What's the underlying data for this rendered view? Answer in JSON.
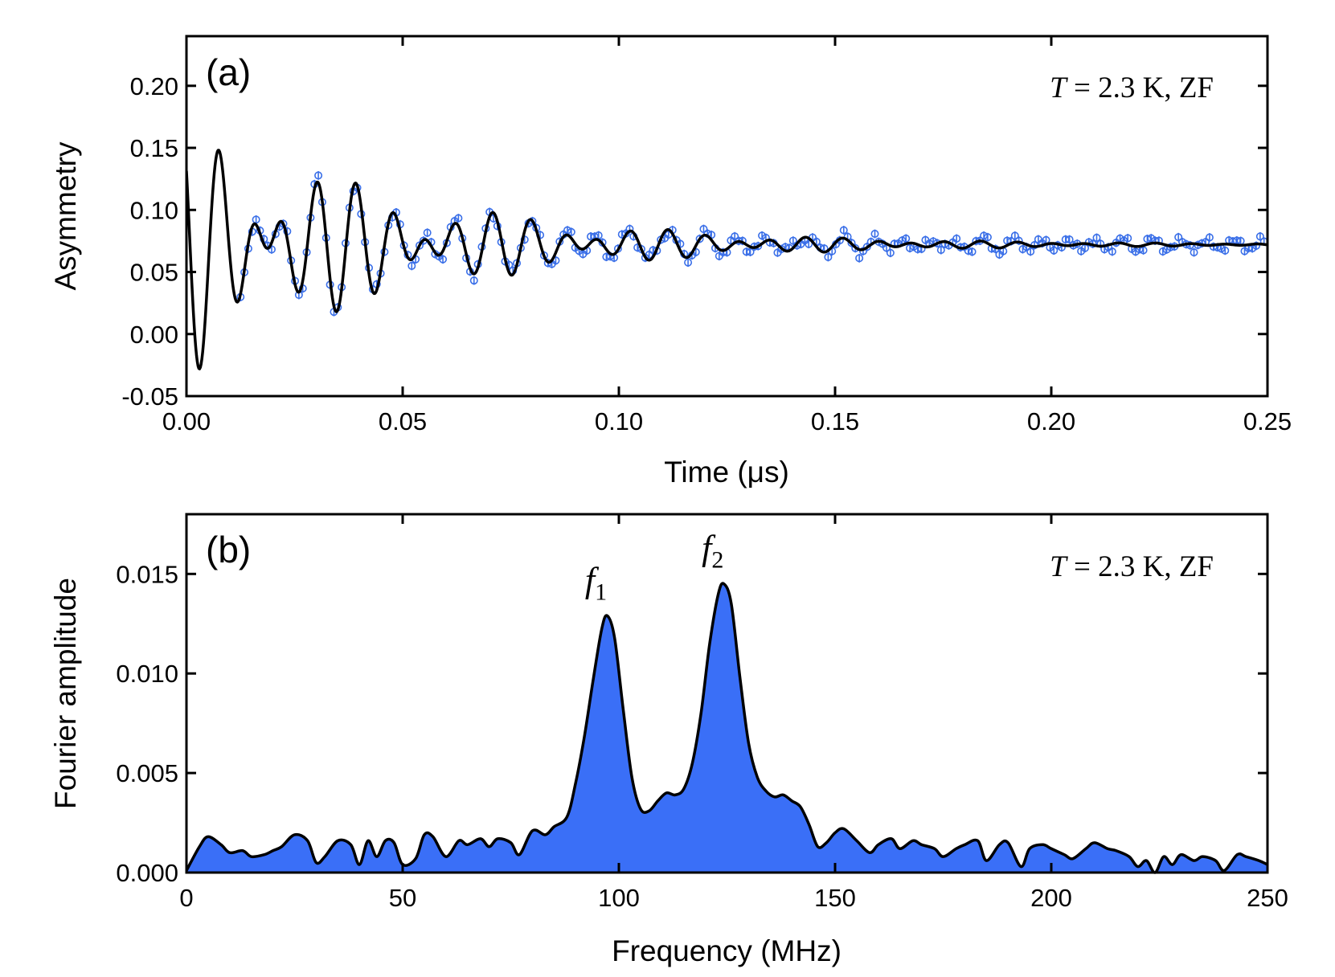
{
  "chart_data": [
    {
      "type": "scatter",
      "panel_label": "(a)",
      "annotation_italic": "T",
      "annotation_rest": " = 2.3 K, ZF",
      "xlabel": "Time (μs)",
      "ylabel": "Asymmetry",
      "xlim": [
        0,
        0.25
      ],
      "ylim": [
        -0.05,
        0.24
      ],
      "xticks": [
        "0.00",
        "0.05",
        "0.10",
        "0.15",
        "0.20",
        "0.25"
      ],
      "xtick_values": [
        0,
        0.05,
        0.1,
        0.15,
        0.2,
        0.25
      ],
      "yticks": [
        "-0.05",
        "0.00",
        "0.05",
        "0.10",
        "0.15",
        "0.20"
      ],
      "ytick_values": [
        -0.05,
        0.0,
        0.05,
        0.1,
        0.15,
        0.2
      ],
      "grid": false,
      "series": [
        {
          "kind": "data_points_with_error_bars",
          "color": "#3a6fe8",
          "baseline": 0.072,
          "components": [
            {
              "amplitude": 0.055,
              "frequency_mhz": 97.3,
              "phase": 1.0,
              "relaxation_per_us": 22
            },
            {
              "amplitude": 0.055,
              "frequency_mhz": 124.3,
              "phase": 1.0,
              "relaxation_per_us": 18
            }
          ],
          "x_range": [
            0.0125,
            0.25
          ],
          "x_step": 0.0009,
          "error_bar": 0.0035
        },
        {
          "kind": "fit_line",
          "color": "#000000",
          "baseline": 0.072,
          "components": [
            {
              "amplitude": 0.055,
              "frequency_mhz": 97.3,
              "phase": 1.0,
              "relaxation_per_us": 22
            },
            {
              "amplitude": 0.055,
              "frequency_mhz": 124.3,
              "phase": 1.0,
              "relaxation_per_us": 18
            }
          ],
          "x_range": [
            0,
            0.25
          ]
        }
      ]
    },
    {
      "type": "area",
      "panel_label": "(b)",
      "annotation_italic": "T",
      "annotation_rest": " = 2.3 K, ZF",
      "xlabel": "Frequency (MHz)",
      "ylabel": "Fourier amplitude",
      "xlim": [
        0,
        250
      ],
      "ylim": [
        0,
        0.018
      ],
      "xticks": [
        "0",
        "50",
        "100",
        "150",
        "200",
        "250"
      ],
      "xtick_values": [
        0,
        50,
        100,
        150,
        200,
        250
      ],
      "yticks": [
        "0.000",
        "0.005",
        "0.010",
        "0.015"
      ],
      "ytick_values": [
        0.0,
        0.005,
        0.01,
        0.015
      ],
      "grid": false,
      "fill_color": "#3a6ff7",
      "line_color": "#000000",
      "peaks": [
        {
          "label": "f",
          "subscript": "1",
          "x": 97.3,
          "y": 0.0129
        },
        {
          "label": "f",
          "subscript": "2",
          "x": 124.3,
          "y": 0.0145
        }
      ],
      "x": [
        0,
        3,
        5,
        8,
        10,
        13,
        15,
        18,
        20,
        22,
        25,
        28,
        30,
        32,
        35,
        38,
        40,
        42,
        44,
        46,
        48,
        50,
        53,
        55,
        57,
        60,
        63,
        65,
        68,
        70,
        72,
        75,
        77,
        80,
        83,
        85,
        88,
        90,
        92,
        94,
        96,
        97.3,
        99,
        101,
        103,
        105,
        107,
        109,
        111,
        113,
        115,
        117,
        119,
        121,
        123,
        124.3,
        126,
        128,
        130,
        132,
        134,
        136,
        138,
        140,
        142,
        144,
        146,
        148,
        150,
        152,
        155,
        158,
        160,
        163,
        165,
        168,
        170,
        173,
        175,
        178,
        180,
        183,
        185,
        188,
        190,
        193,
        195,
        198,
        200,
        203,
        205,
        208,
        210,
        213,
        215,
        218,
        220,
        222,
        224,
        226,
        228,
        230,
        233,
        235,
        238,
        240,
        243,
        245,
        248,
        250
      ],
      "y": [
        0.0001,
        0.0013,
        0.0018,
        0.0014,
        0.001,
        0.0011,
        0.0008,
        0.0009,
        0.0011,
        0.0013,
        0.0019,
        0.0016,
        0.0005,
        0.0008,
        0.0016,
        0.0014,
        0.0004,
        0.0016,
        0.0008,
        0.0016,
        0.0015,
        0.0004,
        0.0007,
        0.0019,
        0.0018,
        0.0008,
        0.0016,
        0.0014,
        0.0017,
        0.0013,
        0.0017,
        0.0015,
        0.0009,
        0.0021,
        0.0019,
        0.0023,
        0.0028,
        0.0045,
        0.0068,
        0.0096,
        0.0122,
        0.0129,
        0.0118,
        0.0082,
        0.0048,
        0.0032,
        0.0031,
        0.0036,
        0.004,
        0.0039,
        0.0042,
        0.0055,
        0.008,
        0.0115,
        0.014,
        0.0145,
        0.0135,
        0.0098,
        0.0065,
        0.0048,
        0.0041,
        0.0038,
        0.0039,
        0.0036,
        0.0033,
        0.0024,
        0.0013,
        0.0015,
        0.002,
        0.0022,
        0.0016,
        0.001,
        0.0014,
        0.0017,
        0.0012,
        0.0016,
        0.0014,
        0.0012,
        0.0008,
        0.0012,
        0.0014,
        0.0016,
        0.0006,
        0.0014,
        0.0015,
        0.0003,
        0.0012,
        0.0014,
        0.0012,
        0.0009,
        0.0007,
        0.0012,
        0.0015,
        0.0012,
        0.0011,
        0.0008,
        0.0003,
        0.0006,
        0.0,
        0.0008,
        0.0004,
        0.0009,
        0.0006,
        0.0008,
        0.0006,
        0.0001,
        0.0009,
        0.0008,
        0.0006,
        0.0004
      ]
    }
  ]
}
